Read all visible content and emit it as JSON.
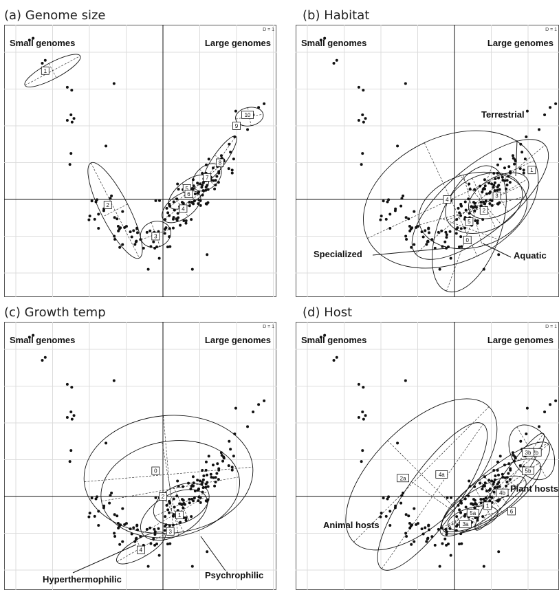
{
  "chart_data": [
    {
      "type": "scatter",
      "panel": "a",
      "title": "(a) Genome size",
      "corner_left": "Small genomes",
      "corner_right": "Large genomes",
      "grid_scale_label": "D = 1",
      "xlim": [
        -4.5,
        3.0
      ],
      "ylim": [
        -2.5,
        4.4
      ],
      "grid": true,
      "groups": [
        {
          "label": "1",
          "center": [
            -3.2,
            3.5
          ]
        },
        {
          "label": "2",
          "center": [
            -1.5,
            -0.15
          ]
        },
        {
          "label": "3",
          "center": [
            -0.2,
            -1.0
          ]
        },
        {
          "label": "4",
          "center": [
            0.55,
            -0.25
          ]
        },
        {
          "label": "5",
          "center": [
            0.65,
            0.3
          ]
        },
        {
          "label": "6",
          "center": [
            0.7,
            0.15
          ]
        },
        {
          "label": "7",
          "center": [
            1.2,
            0.6
          ]
        },
        {
          "label": "8",
          "center": [
            1.55,
            1.0
          ]
        },
        {
          "label": "9",
          "center": [
            2.0,
            2.0
          ]
        },
        {
          "label": "10",
          "center": [
            2.3,
            2.3
          ]
        }
      ],
      "annotations": []
    },
    {
      "type": "scatter",
      "panel": "b",
      "title": "(b) Habitat",
      "corner_left": "Small genomes",
      "corner_right": "Large genomes",
      "grid_scale_label": "D = 1",
      "xlim": [
        -4.5,
        3.0
      ],
      "ylim": [
        -2.5,
        4.4
      ],
      "grid": true,
      "groups": [
        {
          "label": "0",
          "center": [
            0.35,
            -1.1
          ]
        },
        {
          "label": "1",
          "center": [
            2.1,
            0.8
          ]
        },
        {
          "label": "2",
          "center": [
            0.8,
            -0.3
          ]
        },
        {
          "label": "3",
          "center": [
            1.15,
            0.1
          ]
        },
        {
          "label": "4",
          "center": [
            -0.2,
            0.0
          ]
        },
        {
          "label": "5",
          "center": [
            0.4,
            -0.6
          ]
        }
      ],
      "annotations": [
        "Terrestrial",
        "Specialized",
        "Aquatic"
      ]
    },
    {
      "type": "scatter",
      "panel": "c",
      "title": "(c) Growth temp",
      "corner_left": "Small genomes",
      "corner_right": "Large genomes",
      "grid_scale_label": "D = 1",
      "xlim": [
        -4.5,
        3.0
      ],
      "ylim": [
        -2.5,
        4.4
      ],
      "grid": true,
      "groups": [
        {
          "label": "0",
          "center": [
            -0.2,
            0.7
          ]
        },
        {
          "label": "1",
          "center": [
            0.45,
            -0.5
          ]
        },
        {
          "label": "2",
          "center": [
            0.0,
            0.0
          ]
        },
        {
          "label": "3",
          "center": [
            0.2,
            -0.95
          ]
        },
        {
          "label": "4",
          "center": [
            -0.6,
            -1.45
          ]
        }
      ],
      "annotations": [
        "Hyperthermophilic",
        "Psychrophilic"
      ]
    },
    {
      "type": "scatter",
      "panel": "d",
      "title": "(d) Host",
      "corner_left": "Small genomes",
      "corner_right": "Large genomes",
      "grid_scale_label": "D = 1",
      "xlim": [
        -4.5,
        3.0
      ],
      "ylim": [
        -2.5,
        4.4
      ],
      "grid": true,
      "groups": [
        {
          "label": "1",
          "center": [
            0.9,
            -0.25
          ]
        },
        {
          "label": "2a",
          "center": [
            -1.4,
            0.5
          ]
        },
        {
          "label": "2b",
          "center": [
            2.2,
            1.2
          ]
        },
        {
          "label": "3a",
          "center": [
            0.3,
            -0.75
          ]
        },
        {
          "label": "3b",
          "center": [
            2.0,
            1.2
          ]
        },
        {
          "label": "4a",
          "center": [
            -0.35,
            0.6
          ]
        },
        {
          "label": "4b",
          "center": [
            1.3,
            0.1
          ]
        },
        {
          "label": "5a",
          "center": [
            0.5,
            -0.45
          ]
        },
        {
          "label": "5b",
          "center": [
            2.0,
            0.7
          ]
        },
        {
          "label": "6",
          "center": [
            1.55,
            -0.4
          ]
        }
      ],
      "annotations": [
        "Animal hosts",
        "Plant hosts"
      ]
    }
  ]
}
